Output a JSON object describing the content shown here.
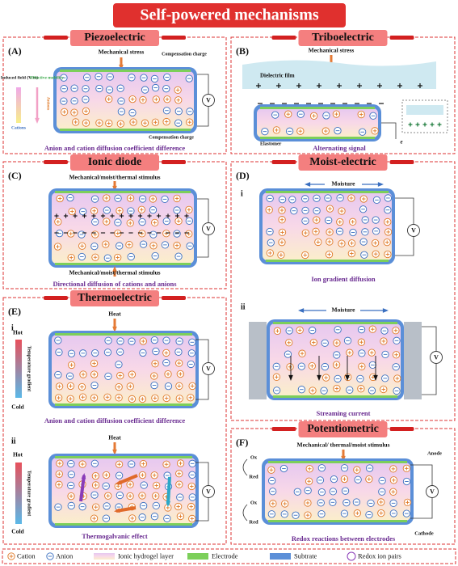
{
  "header": {
    "title": "Self-powered mechanisms"
  },
  "voltmeter": "V",
  "panels": {
    "A": {
      "label": "(A)",
      "title": "Piezoelectric",
      "stress": "Mechanical stress",
      "compensation_top": "Compensation charge",
      "compensation_bottom": "Compensation charge",
      "field": "Induced field (V/m)",
      "mobility": "Effective mobility",
      "anions": "Anions",
      "cations": "Cations",
      "caption": "Anion and cation diffusion coefficient difference"
    },
    "B": {
      "label": "(B)",
      "title": "Triboelectric",
      "stress": "Mechanical stress",
      "film": "Dielectric film",
      "elastomer": "Elastomer",
      "electron": "e",
      "caption": "Alternating signal"
    },
    "C": {
      "label": "(C)",
      "title": "Ionic diode",
      "stimulus_top": "Mechanical/moist/thermal stimulus",
      "stimulus_bottom": "Mechanical/moist/thermal stimulus",
      "caption": "Directional diffusion of cations and anions"
    },
    "D": {
      "label": "(D)",
      "title": "Moist-electric",
      "sub1": {
        "label": "i",
        "moisture": "Moisture",
        "caption": "Ion gradient diffusion"
      },
      "sub2": {
        "label": "ii",
        "moisture": "Moisture",
        "caption": "Streaming current"
      }
    },
    "E": {
      "label": "(E)",
      "title": "Thermoelectric",
      "sub1": {
        "label": "i",
        "heat": "Heat",
        "hot": "Hot",
        "cold": "Cold",
        "gradient": "Temperature gradient",
        "caption": "Anion and cation diffusion coefficient difference"
      },
      "sub2": {
        "label": "ii",
        "heat": "Heat",
        "hot": "Hot",
        "cold": "Cold",
        "gradient": "Temperature gradient",
        "caption": "Thermogalvanic effect"
      }
    },
    "F": {
      "label": "(F)",
      "title": "Potentiometric",
      "stimulus": "Mechanical/ thermal/moist stimulus",
      "anode": "Anode",
      "cathode": "Cathode",
      "ox_top": "Ox",
      "red_top": "Red",
      "ox_bottom": "Ox",
      "red_bottom": "Red",
      "caption": "Redox reactions between electrodes"
    }
  },
  "legend": [
    "Cation",
    "Anion",
    "Ionic hydrogel layer",
    "Electrode",
    "Subtrate",
    "Redox ion pairs"
  ]
}
